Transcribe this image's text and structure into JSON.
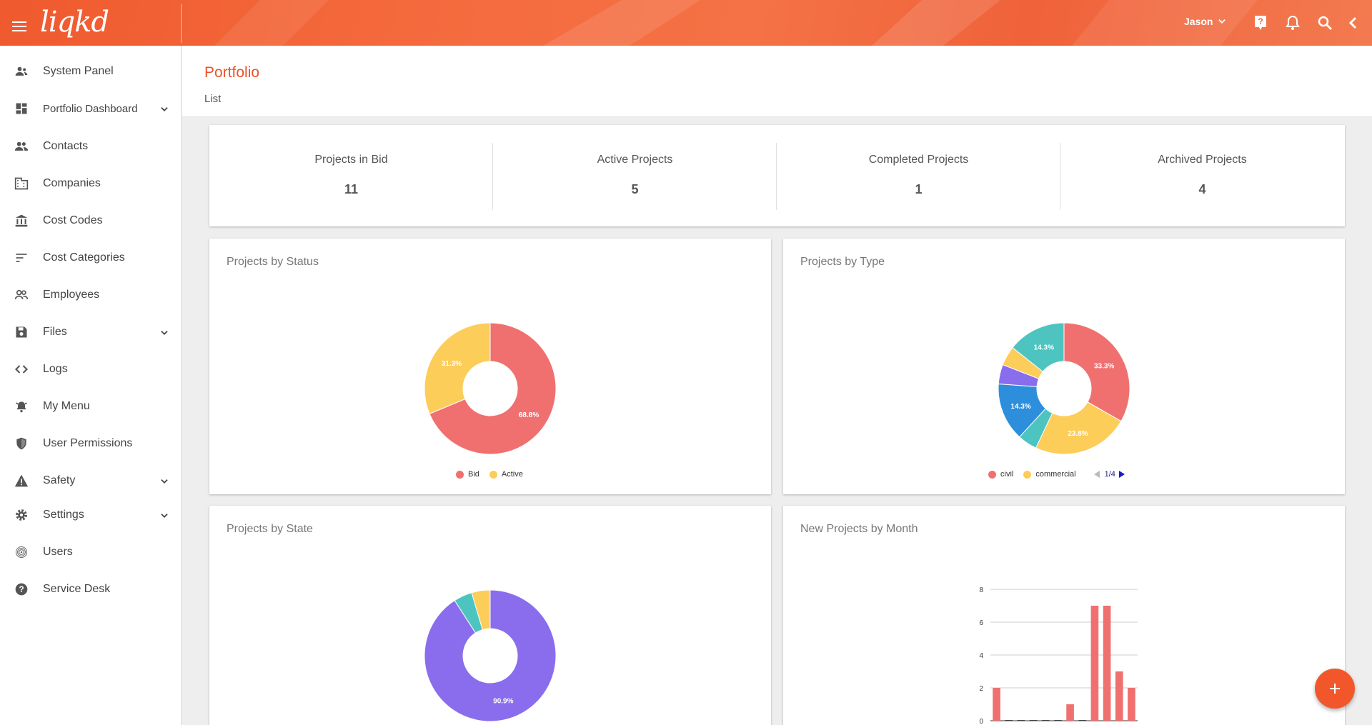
{
  "app": {
    "logo_text": "liqkd",
    "user_name": "Jason"
  },
  "colors": {
    "accent": "#e8542a",
    "fab": "#f2572b",
    "pie_red": "#f07070",
    "pie_yellow": "#fdcd5a",
    "pie_teal": "#4dc4c0",
    "pie_blue": "#2d8fdc",
    "pie_purple": "#8a6ded"
  },
  "sidebar": {
    "items": [
      {
        "label": "System Panel",
        "icon": "people-icon"
      },
      {
        "label": "Portfolio Dashboard",
        "icon": "dashboard-icon",
        "expandable": true
      },
      {
        "label": "Contacts",
        "icon": "contacts-icon"
      },
      {
        "label": "Companies",
        "icon": "building-icon"
      },
      {
        "label": "Cost Codes",
        "icon": "bank-icon"
      },
      {
        "label": "Cost Categories",
        "icon": "sort-lines-icon"
      },
      {
        "label": "Employees",
        "icon": "employees-icon"
      },
      {
        "label": "Files",
        "icon": "save-icon",
        "expandable": true
      },
      {
        "label": "Logs",
        "icon": "code-icon"
      },
      {
        "label": "My Menu",
        "icon": "menu-bell-icon"
      },
      {
        "label": "User Permissions",
        "icon": "shield-icon"
      },
      {
        "label": "Safety",
        "icon": "warning-icon",
        "expandable": true
      },
      {
        "label": "Settings",
        "icon": "gear-icon",
        "expandable": true
      },
      {
        "label": "Users",
        "icon": "fingerprint-icon"
      },
      {
        "label": "Service Desk",
        "icon": "help-circle-icon"
      }
    ]
  },
  "page": {
    "title": "Portfolio",
    "subtitle": "List"
  },
  "stats": [
    {
      "label": "Projects in Bid",
      "value": "11"
    },
    {
      "label": "Active Projects",
      "value": "5"
    },
    {
      "label": "Completed Projects",
      "value": "1"
    },
    {
      "label": "Archived Projects",
      "value": "4"
    }
  ],
  "cards": {
    "status_title": "Projects by Status",
    "type_title": "Projects by Type",
    "state_title": "Projects by State",
    "month_title": "New Projects by Month"
  },
  "chart_data": [
    {
      "type": "pie",
      "title": "Projects by Status",
      "donut": true,
      "slices": [
        {
          "name": "Bid",
          "value": 68.8,
          "label": "68.8%",
          "color": "#f07070"
        },
        {
          "name": "Active",
          "value": 31.3,
          "label": "31.3%",
          "color": "#fdcd5a"
        }
      ],
      "legend": [
        "Bid",
        "Active"
      ],
      "legend_position": "bottom"
    },
    {
      "type": "pie",
      "title": "Projects by Type",
      "donut": true,
      "slices": [
        {
          "name": "civil",
          "value": 33.3,
          "label": "33.3%",
          "color": "#f07070"
        },
        {
          "name": "commercial",
          "value": 23.8,
          "label": "23.8%",
          "color": "#fdcd5a"
        },
        {
          "value": 4.8,
          "label": "",
          "color": "#4dc4c0"
        },
        {
          "value": 14.3,
          "label": "14.3%",
          "color": "#2d8fdc"
        },
        {
          "value": 4.8,
          "label": "",
          "color": "#8a6ded"
        },
        {
          "value": 4.8,
          "label": "",
          "color": "#fdcd5a"
        },
        {
          "value": 14.3,
          "label": "14.3%",
          "color": "#4dc4c0"
        }
      ],
      "legend": [
        "civil",
        "commercial"
      ],
      "legend_page": "1/4",
      "legend_position": "bottom"
    },
    {
      "type": "pie",
      "title": "Projects by State",
      "donut": true,
      "slices": [
        {
          "value": 90.9,
          "label": "90.9%",
          "color": "#8a6ded"
        },
        {
          "value": 4.55,
          "label": "",
          "color": "#4dc4c0"
        },
        {
          "value": 4.55,
          "label": "",
          "color": "#fdcd5a"
        }
      ]
    },
    {
      "type": "bar",
      "title": "New Projects by Month",
      "values": [
        2,
        0,
        0,
        0,
        0,
        0,
        1,
        0,
        7,
        7,
        3,
        2
      ],
      "y_ticks": [
        "0",
        "2",
        "4",
        "6",
        "8"
      ],
      "ylim": [
        0,
        8
      ],
      "color": "#f07070",
      "grid": true
    }
  ]
}
